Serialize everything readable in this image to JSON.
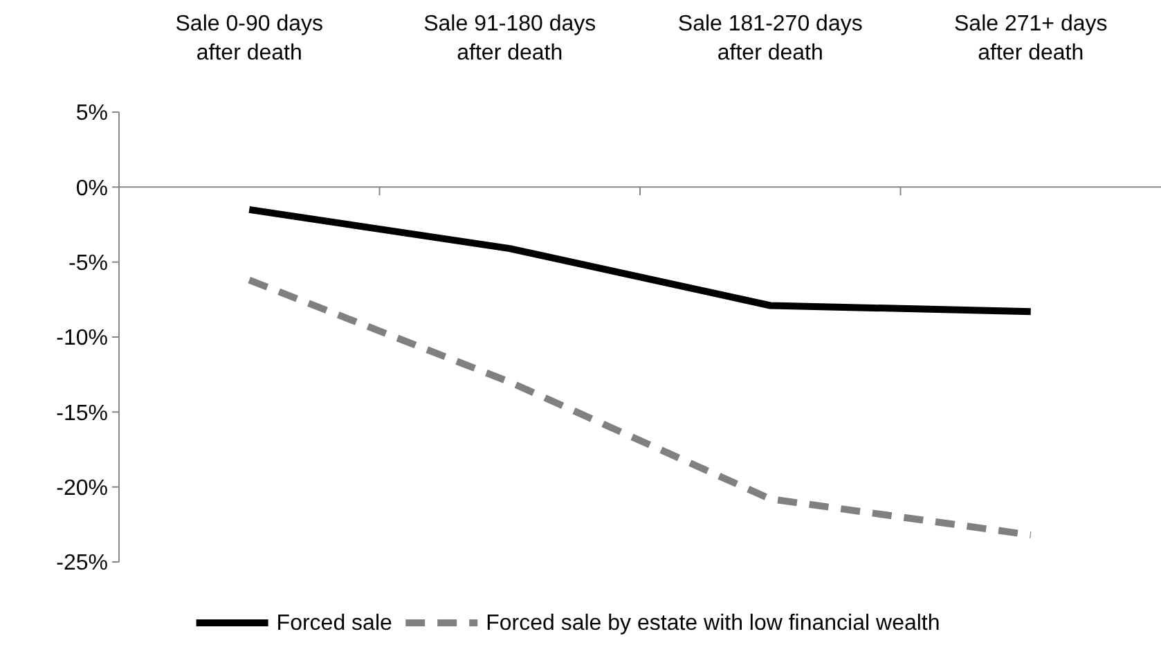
{
  "chart_data": {
    "type": "line",
    "categories": [
      "Sale 0-90 days after death",
      "Sale 91-180 days after death",
      "Sale 181-270 days after death",
      "Sale 271+ days after death"
    ],
    "series": [
      {
        "name": "Forced sale",
        "color": "#000000",
        "values": [
          -1.5,
          -4.1,
          -7.9,
          -8.3
        ],
        "line_style": "solid"
      },
      {
        "name": "Forced sale by estate with low financial wealth",
        "color": "#808080",
        "values": [
          -6.2,
          -13.0,
          -20.8,
          -23.2
        ],
        "line_style": "dashed"
      }
    ],
    "ylim": [
      -25,
      5
    ],
    "yticks": [
      {
        "value": 5,
        "label": "5%"
      },
      {
        "value": 0,
        "label": "0%"
      },
      {
        "value": -5,
        "label": "-5%"
      },
      {
        "value": -10,
        "label": "-10%"
      },
      {
        "value": -15,
        "label": "-15%"
      },
      {
        "value": -20,
        "label": "-20%"
      },
      {
        "value": -25,
        "label": "-25%"
      }
    ],
    "legend": "bottom",
    "marker": "none"
  }
}
